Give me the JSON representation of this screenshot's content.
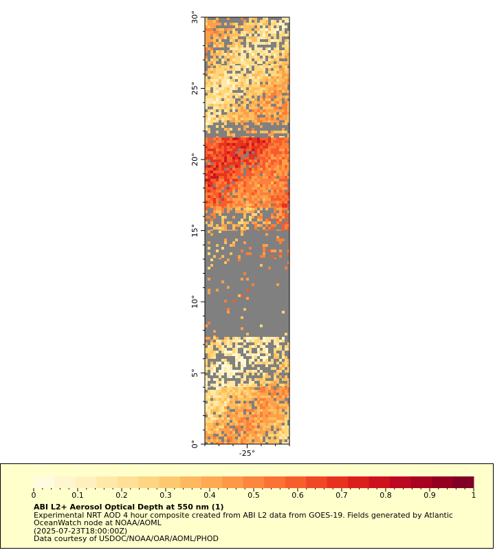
{
  "map": {
    "y_axis_labels": [
      "0°",
      "5°",
      "10°",
      "15°",
      "20°",
      "25°",
      "30°"
    ],
    "x_axis_labels": [
      "-25°"
    ],
    "lat_range": [
      0,
      30
    ],
    "lon_center": -25,
    "missing_color": "#808080",
    "palette": [
      "#fff8d4",
      "#ffe9a8",
      "#fed77a",
      "#fdbe5e",
      "#fda04a",
      "#fc7f3a",
      "#f85b2c",
      "#e8331e",
      "#c81820",
      "#a0071f",
      "#7a0020"
    ],
    "bands": [
      {
        "lat": [
          26.6,
          30
        ],
        "level": 0.28,
        "coverage": 0.72
      },
      {
        "lat": [
          22.6,
          26.6
        ],
        "level": 0.3,
        "coverage": 0.85
      },
      {
        "lat": [
          21.5,
          22.6
        ],
        "level": 0.28,
        "coverage": 0.35
      },
      {
        "lat": [
          16.6,
          21.5
        ],
        "level": 0.52,
        "coverage": 0.94
      },
      {
        "lat": [
          15.0,
          16.6
        ],
        "level": 0.45,
        "coverage": 0.55
      },
      {
        "lat": [
          13.0,
          15.0
        ],
        "level": 0.4,
        "coverage": 0.14
      },
      {
        "lat": [
          7.5,
          13.0
        ],
        "level": 0.35,
        "coverage": 0.03
      },
      {
        "lat": [
          4.0,
          7.5
        ],
        "level": 0.22,
        "coverage": 0.62
      },
      {
        "lat": [
          0,
          4.0
        ],
        "level": 0.3,
        "coverage": 0.88
      }
    ]
  },
  "legend": {
    "colorbar": {
      "min": 0,
      "max": 1,
      "tick_labels": [
        "0",
        "0.1",
        "0.2",
        "0.3",
        "0.4",
        "0.5",
        "0.6",
        "0.7",
        "0.8",
        "0.9",
        "1"
      ],
      "colors": [
        "#fffbe0",
        "#fff6cf",
        "#fff0bd",
        "#ffe9a9",
        "#ffe096",
        "#fed583",
        "#fec870",
        "#feb960",
        "#fea953",
        "#fd9846",
        "#fc863d",
        "#fb7234",
        "#f85e2c",
        "#f24726",
        "#e83220",
        "#dc1f1d",
        "#cd121e",
        "#bc0820",
        "#a80321",
        "#950021",
        "#800026"
      ]
    },
    "title": "ABI L2+ Aerosol Optical Depth at 550 nm (1)",
    "description": "Experimental NRT AOD 4 hour composite created from ABI L2 data from GOES-19. Fields generated by Atlantic OceanWatch node at NOAA/AOML",
    "timestamp": "(2025-07-23T18:00:00Z)",
    "credit": "Data courtesy of USDOC/NOAA/OAR/AOML/PHOD"
  }
}
